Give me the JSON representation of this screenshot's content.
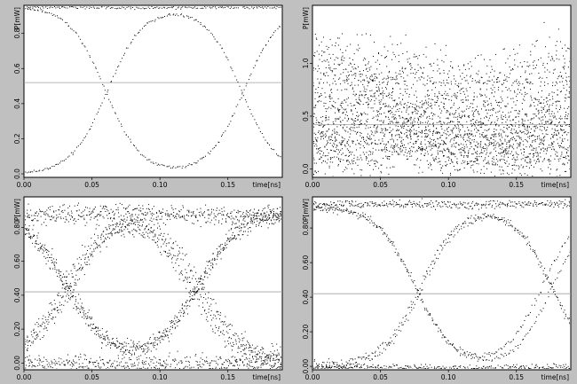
{
  "chart_data": [
    {
      "type": "scatter",
      "panel": "top-left",
      "ylabel": "P[mW]",
      "xlabel": "time[ns]",
      "xticks": [
        "0.00",
        "0.05",
        "0.10",
        "0.15"
      ],
      "yticks": [
        "0.0",
        "0.2",
        "0.4",
        "0.6",
        "0.8"
      ],
      "xlim": [
        0.0,
        0.19
      ],
      "ylim": [
        -0.02,
        0.96
      ],
      "reference_line_y": 0.52,
      "eye": {
        "low": 0.0,
        "high": 0.95,
        "crossings": [
          0.061,
          0.161
        ],
        "edge_width": 0.013,
        "noise": 0.004,
        "spread": 0.0015,
        "traces": 3,
        "points_per_trace": 170,
        "pattern": "clean"
      }
    },
    {
      "type": "scatter",
      "panel": "top-right",
      "ylabel": "P[mW]",
      "xlabel": "time[ns]",
      "xticks": [
        "0.00",
        "0.05",
        "0.10",
        "0.15"
      ],
      "yticks": [
        "0.0",
        "0.5",
        "1.0"
      ],
      "xlim": [
        0.0,
        0.19
      ],
      "ylim": [
        -0.08,
        1.55
      ],
      "reference_line_y": 0.42,
      "eye": {
        "low": 0.02,
        "high": 1.0,
        "crossings": [
          0.04,
          0.14
        ],
        "edge_width": 0.03,
        "noise": 0.1,
        "spread": 0.008,
        "traces": 22,
        "points_per_trace": 140,
        "pattern": "chaotic"
      }
    },
    {
      "type": "scatter",
      "panel": "bottom-left",
      "ylabel": "P[mW]",
      "xlabel": "time[ns]",
      "xticks": [
        "0.00",
        "0.05",
        "0.10",
        "0.15"
      ],
      "yticks": [
        "0.00",
        "0.20",
        "0.40",
        "0.60",
        "0.80"
      ],
      "xlim": [
        0.0,
        0.19
      ],
      "ylim": [
        -0.04,
        0.98
      ],
      "reference_line_y": 0.42,
      "eye": {
        "low": 0.0,
        "high": 0.88,
        "crossings": [
          0.03,
          0.128
        ],
        "edge_width": 0.016,
        "noise": 0.025,
        "spread": 0.004,
        "traces": 14,
        "points_per_trace": 170,
        "pattern": "noisy"
      }
    },
    {
      "type": "scatter",
      "panel": "bottom-right",
      "ylabel": "P[mW]",
      "xlabel": "time[ns]",
      "xticks": [
        "0.00",
        "0.05",
        "0.10",
        "0.15"
      ],
      "yticks": [
        "0.00",
        "0.20",
        "0.40",
        "0.60",
        "0.80"
      ],
      "xlim": [
        0.0,
        0.19
      ],
      "ylim": [
        -0.02,
        0.98
      ],
      "reference_line_y": 0.42,
      "eye": {
        "low": 0.0,
        "high": 0.93,
        "crossings": [
          0.077,
          0.175
        ],
        "edge_width": 0.014,
        "noise": 0.01,
        "spread": 0.003,
        "traces": 8,
        "points_per_trace": 170,
        "pattern": "moderate"
      }
    }
  ]
}
